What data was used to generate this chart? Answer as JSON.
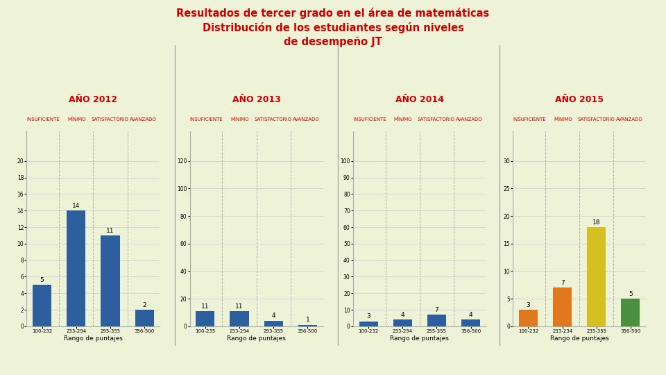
{
  "title_line1": "Resultados de tercer grado en el área de matemáticas",
  "title_line2": "Distribución de los estudiantes según niveles",
  "title_line3": "de desempeño JT",
  "title_color": "#cc0000",
  "background_color": "#eef3d8",
  "subplot_bg": "#eef3d8",
  "years": [
    "AÑO 2012",
    "AÑO 2013",
    "AÑO 2014",
    "AÑO 2015"
  ],
  "year_color": "#cc0000",
  "categories": [
    "100-232",
    "233-294",
    "295-355",
    "356-500"
  ],
  "cat_labels_2012": [
    "100-232",
    "233-294",
    "295-355",
    "356-500"
  ],
  "cat_labels_2013": [
    "100-235",
    "233-294",
    "293-355",
    "356-500"
  ],
  "cat_labels_2014": [
    "100-232",
    "233-294",
    "255-355",
    "356-500"
  ],
  "cat_labels_2015": [
    "100-232",
    "233-234",
    "235-355",
    "356-500"
  ],
  "level_labels": [
    "INSUFICIENTE",
    "MÍNIMO",
    "SATISFACTORIO",
    "AVANZADO"
  ],
  "values": [
    [
      5,
      14,
      11,
      2
    ],
    [
      11,
      11,
      4,
      1
    ],
    [
      3,
      4,
      7,
      4
    ],
    [
      3,
      7,
      18,
      5
    ]
  ],
  "bar_colors": [
    [
      "#2d5f9e",
      "#2d5f9e",
      "#2d5f9e",
      "#2d5f9e"
    ],
    [
      "#2d5f9e",
      "#2d5f9e",
      "#2d5f9e",
      "#2d5f9e"
    ],
    [
      "#2d5f9e",
      "#2d5f9e",
      "#2d5f9e",
      "#2d5f9e"
    ],
    [
      "#e07820",
      "#e07820",
      "#d4c020",
      "#4a9040"
    ]
  ],
  "xlabel": "Rango de puntajes",
  "yticks": [
    [
      0,
      2,
      4,
      6,
      8,
      10,
      12,
      14,
      16,
      18,
      20
    ],
    [
      0,
      20,
      40,
      60,
      80,
      100,
      120
    ],
    [
      0,
      10,
      20,
      30,
      40,
      50,
      60,
      70,
      80,
      90,
      100
    ],
    [
      0,
      5,
      10,
      15,
      20,
      25,
      30
    ]
  ],
  "ylims": [
    20,
    120,
    100,
    30
  ],
  "dashed_line_color": "#999999",
  "level_label_color": "#cc0000",
  "level_label_fontsize": 5.0,
  "year_fontsize": 9,
  "value_fontsize": 6.5,
  "xlabel_fontsize": 6.5,
  "tick_fontsize": 5.5
}
